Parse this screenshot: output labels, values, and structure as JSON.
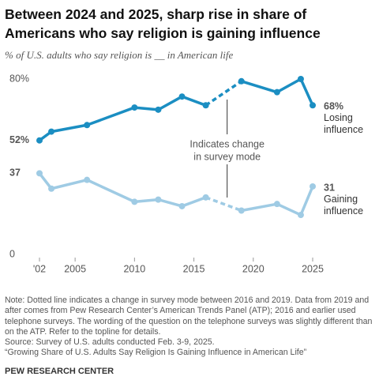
{
  "chart_data": {
    "type": "line",
    "title": "Between 2024 and 2025, sharp rise in share of Americans who say religion is gaining influence",
    "subtitle": "% of U.S. adults who say religion is __ in American life",
    "x": [
      2002,
      2003,
      2006,
      2010,
      2012,
      2014,
      2016,
      2019,
      2022,
      2024,
      2025
    ],
    "series": [
      {
        "name": "Losing influence",
        "color": "#1b8ec2",
        "values": [
          52,
          56,
          59,
          67,
          66,
          72,
          68,
          79,
          74,
          80,
          68
        ],
        "value_labels": [
          "52%",
          null,
          null,
          null,
          null,
          null,
          null,
          null,
          null,
          null,
          "68%"
        ]
      },
      {
        "name": "Gaining influence",
        "color": "#9fcbe4",
        "values": [
          37,
          30,
          34,
          24,
          25,
          22,
          26,
          20,
          23,
          18,
          31
        ],
        "value_labels": [
          "37",
          null,
          null,
          null,
          null,
          null,
          null,
          null,
          null,
          null,
          "31"
        ]
      }
    ],
    "survey_mode_change": [
      2016,
      2019
    ],
    "annotation": [
      "Indicates change",
      "in survey mode"
    ],
    "xlim": [
      2002,
      2025
    ],
    "xticks": [
      {
        "value": 2002,
        "label": "'02"
      },
      2005,
      2010,
      2015,
      2020,
      2025
    ],
    "ylim": [
      0,
      80
    ],
    "yticks": [
      0,
      {
        "value": 80,
        "label": "80%"
      }
    ],
    "note": "Note: Dotted line indicates a change in survey mode between 2016 and 2019. Data from 2019 and after comes from Pew Research Center’s American Trends Panel (ATP); 2016 and earlier used telephone surveys. The wording of the question on the telephone surveys was slightly different than on the ATP. Refer to the topline for details.",
    "source": "Source: Survey of U.S. adults conducted Feb. 3-9, 2025.",
    "citation": "“Growing Share of U.S. Adults Say Religion Is Gaining Influence in American Life”",
    "footer": "PEW RESEARCH CENTER"
  }
}
